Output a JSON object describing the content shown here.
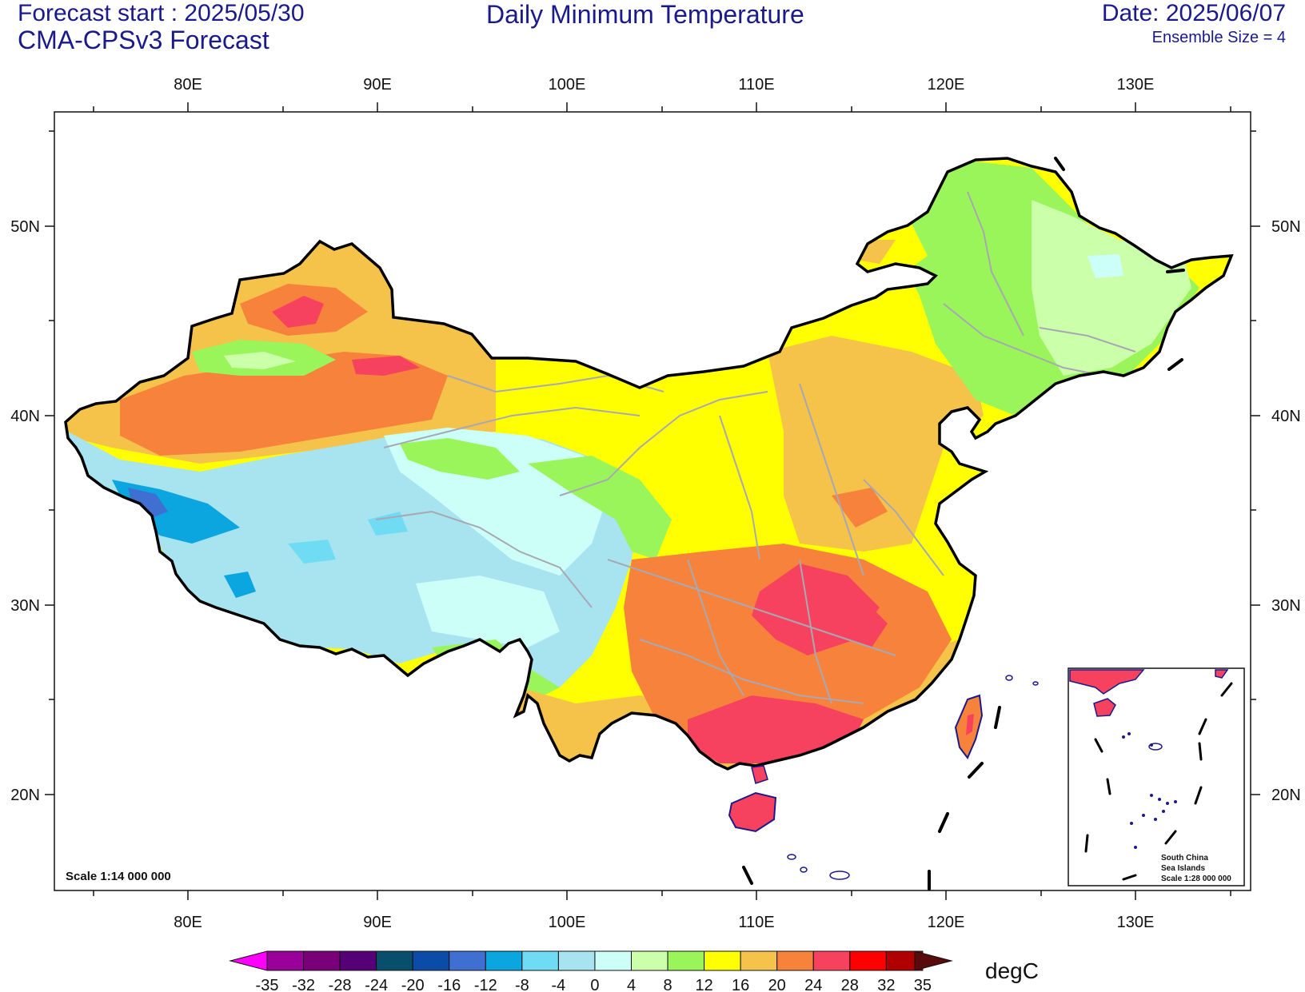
{
  "header": {
    "forecast_start": "Forecast start : 2025/05/30",
    "model": "CMA-CPSv3 Forecast",
    "title": "Daily Minimum Temperature",
    "date": "Date: 2025/06/07",
    "ensemble": "Ensemble Size = 4"
  },
  "axes": {
    "lon_labels": [
      "80E",
      "90E",
      "100E",
      "110E",
      "120E",
      "130E"
    ],
    "lat_labels": [
      "50N",
      "40N",
      "30N",
      "20N"
    ]
  },
  "map": {
    "scale_label": "Scale 1:14 000 000",
    "inset_lines": [
      "South China",
      "Sea Islands",
      "Scale 1:28 000 000"
    ]
  },
  "colorbar": {
    "unit": "degC",
    "labels": [
      "-35",
      "-32",
      "-28",
      "-24",
      "-20",
      "-16",
      "-12",
      "-8",
      "-4",
      "0",
      "4",
      "8",
      "12",
      "16",
      "20",
      "24",
      "28",
      "32",
      "35"
    ],
    "colors": [
      "#9a009a",
      "#7a007a",
      "#550077",
      "#0a4e6e",
      "#0a4ca8",
      "#3f6fd1",
      "#0ba6e0",
      "#6fdcf4",
      "#a8e3f0",
      "#ccfff7",
      "#ccffaa",
      "#99f559",
      "#ffff00",
      "#f5c34a",
      "#f7823c",
      "#f7425f",
      "#ff0000",
      "#b00000"
    ],
    "left_triangle_color": "#ff00ff",
    "right_triangle_color": "#5a0a0a"
  }
}
